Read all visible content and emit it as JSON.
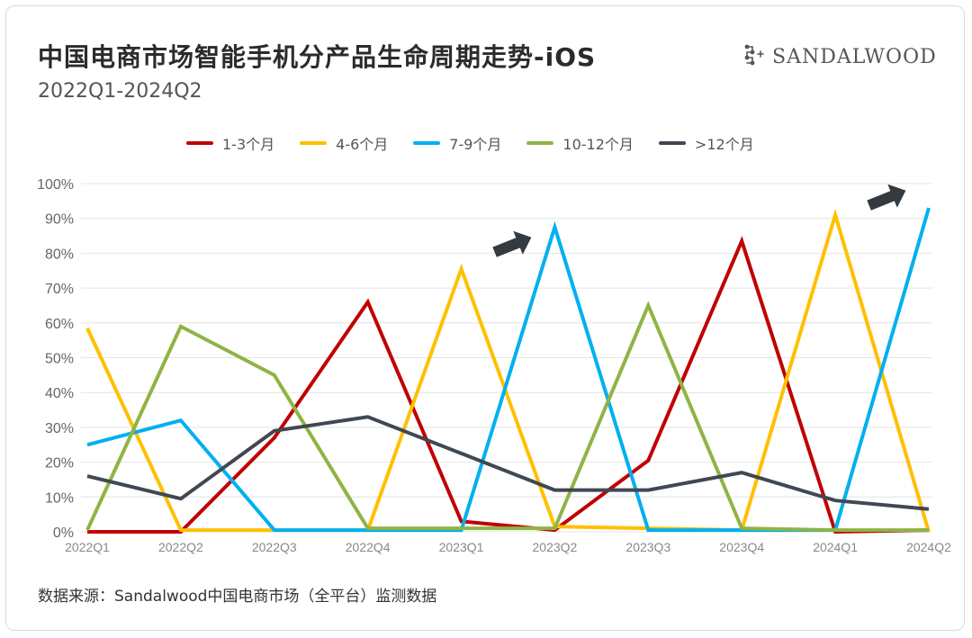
{
  "header": {
    "title": "中国电商市场智能手机分产品生命周期走势-iOS",
    "subtitle": "2022Q1-2024Q2",
    "brand": "SANDALWOOD"
  },
  "footer": {
    "source": "数据来源：Sandalwood中国电商市场（全平台）监测数据"
  },
  "colors": {
    "1-3": "#c00000",
    "4-6": "#ffc000",
    "7-9": "#00b0f0",
    "10-12": "#8fb444",
    ">12": "#404852",
    "grid": "#e4e4e4",
    "arrow": "#333a40"
  },
  "chart_data": {
    "type": "line",
    "categories": [
      "2022Q1",
      "2022Q2",
      "2022Q3",
      "2022Q4",
      "2023Q1",
      "2023Q2",
      "2023Q3",
      "2023Q4",
      "2024Q1",
      "2024Q2"
    ],
    "ylim": [
      0,
      100
    ],
    "yticks": [
      "0%",
      "10%",
      "20%",
      "30%",
      "40%",
      "50%",
      "60%",
      "70%",
      "80%",
      "90%",
      "100%"
    ],
    "grid": true,
    "legend_position": "top",
    "series": [
      {
        "name": "1-3个月",
        "key": "1-3",
        "values": [
          0,
          0,
          27,
          66,
          3,
          0.5,
          20.5,
          83.5,
          0,
          0.5
        ]
      },
      {
        "name": "4-6个月",
        "key": "4-6",
        "values": [
          58.5,
          0.5,
          0.5,
          0.5,
          75.5,
          1.5,
          1,
          0.5,
          91,
          0
        ]
      },
      {
        "name": "7-9个月",
        "key": "7-9",
        "values": [
          25,
          32,
          0.5,
          0.5,
          0.5,
          87.5,
          0.5,
          0.5,
          0.5,
          93
        ]
      },
      {
        "name": "10-12个月",
        "key": "10-12",
        "values": [
          0.5,
          59,
          45,
          1,
          1,
          1,
          65,
          1,
          0.5,
          0.5
        ]
      },
      {
        "name": ">12个月",
        "key": ">12",
        "values": [
          16,
          9.5,
          29,
          33,
          22.5,
          12,
          12,
          17,
          9,
          6.5
        ]
      }
    ],
    "annotations": [
      {
        "type": "arrow",
        "near_category": "2023Q2"
      },
      {
        "type": "arrow",
        "near_category": "2024Q2"
      }
    ]
  }
}
